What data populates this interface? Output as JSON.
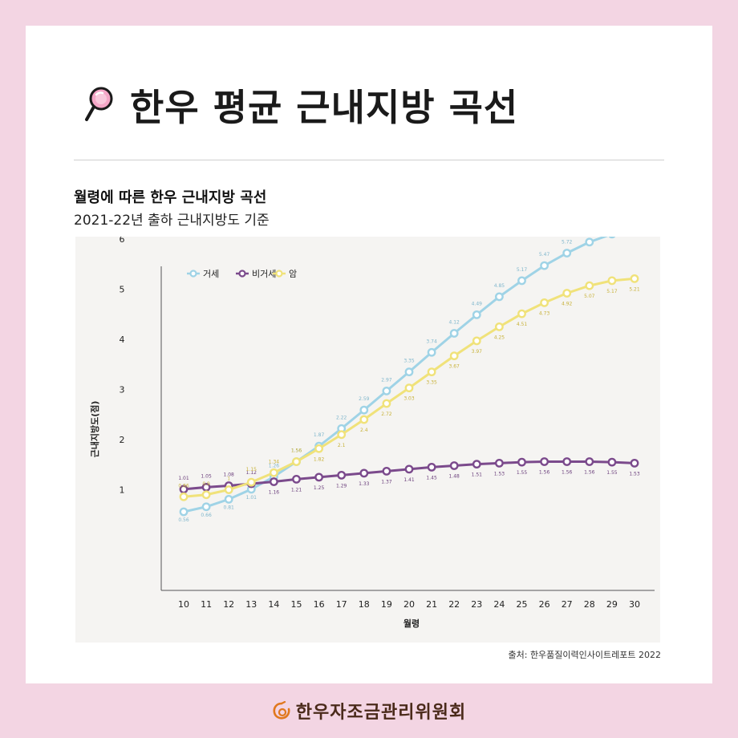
{
  "header": {
    "title": "한우 평균 근내지방 곡선"
  },
  "subtitle": "월령에 따른 한우 근내지방 곡선",
  "subtitle2": "2021-22년 출하 근내지방도 기준",
  "source": "출처: 한우품질이력인사이트레포트 2022",
  "footer": {
    "org": "한우자조금관리위원회"
  },
  "colors": {
    "background": "#f3d5e3",
    "castrated": "#9fd3e6",
    "bull": "#7b4a8c",
    "cow": "#f0e27a"
  },
  "chart_data": {
    "type": "line",
    "xlabel": "월령",
    "ylabel": "근내지방도(점)",
    "x": [
      10,
      11,
      12,
      13,
      14,
      15,
      16,
      17,
      18,
      19,
      20,
      21,
      22,
      23,
      24,
      25,
      26,
      27,
      28,
      29,
      30
    ],
    "yticks": [
      1,
      2,
      3,
      4,
      5,
      6
    ],
    "ylim": [
      0,
      6.5
    ],
    "legend": "top-left",
    "series": [
      {
        "name": "거세",
        "color": "#9fd3e6",
        "label_color": "#7fb6cc",
        "label_pos": "mixed",
        "values": [
          0.56,
          0.66,
          0.81,
          1.01,
          1.26,
          1.56,
          1.87,
          2.22,
          2.59,
          2.97,
          3.35,
          3.74,
          4.12,
          4.49,
          4.85,
          5.17,
          5.47,
          5.72,
          5.94,
          6.1,
          6.2
        ]
      },
      {
        "name": "비거세",
        "color": "#7b4a8c",
        "label_color": "#6b3f7c",
        "label_pos": "mixed",
        "values": [
          1.01,
          1.05,
          1.08,
          1.12,
          1.16,
          1.21,
          1.25,
          1.29,
          1.33,
          1.37,
          1.41,
          1.45,
          1.48,
          1.51,
          1.53,
          1.55,
          1.56,
          1.56,
          1.56,
          1.55,
          1.53
        ]
      },
      {
        "name": "암",
        "color": "#f0e27a",
        "label_color": "#c8b23a",
        "label_pos": "mixed",
        "values": [
          0.86,
          0.9,
          1.0,
          1.15,
          1.34,
          1.56,
          1.82,
          2.1,
          2.4,
          2.72,
          3.03,
          3.35,
          3.67,
          3.97,
          4.25,
          4.51,
          4.73,
          4.92,
          5.07,
          5.17,
          5.21
        ]
      }
    ]
  }
}
